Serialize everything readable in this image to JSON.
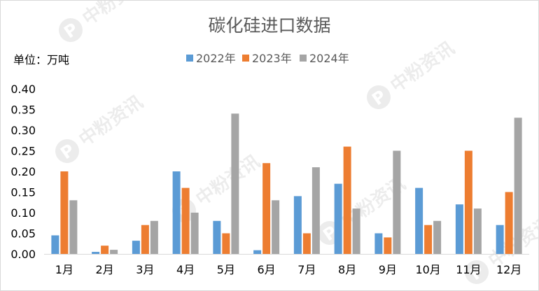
{
  "chart_data": {
    "type": "bar",
    "title": "碳化硅进口数据",
    "unit_label": "单位：万吨",
    "categories": [
      "1月",
      "2月",
      "3月",
      "4月",
      "5月",
      "6月",
      "7月",
      "8月",
      "9月",
      "10月",
      "11月",
      "12月"
    ],
    "series": [
      {
        "name": "2022年",
        "color": "#5b9bd5",
        "values": [
          0.045,
          0.005,
          0.032,
          0.2,
          0.08,
          0.009,
          0.14,
          0.17,
          0.05,
          0.16,
          0.12,
          0.07
        ]
      },
      {
        "name": "2023年",
        "color": "#ed7d31",
        "values": [
          0.2,
          0.02,
          0.07,
          0.16,
          0.05,
          0.22,
          0.05,
          0.26,
          0.04,
          0.07,
          0.25,
          0.15
        ]
      },
      {
        "name": "2024年",
        "color": "#a5a5a5",
        "values": [
          0.13,
          0.01,
          0.08,
          0.1,
          0.34,
          0.13,
          0.21,
          0.11,
          0.25,
          0.08,
          0.11,
          0.33
        ]
      }
    ],
    "ylim": [
      0,
      0.4
    ],
    "yticks": [
      "0.00",
      "0.05",
      "0.10",
      "0.15",
      "0.20",
      "0.25",
      "0.30",
      "0.35",
      "0.40"
    ],
    "grid": false,
    "legend_position": "top"
  },
  "watermark": {
    "text": "中粉资讯",
    "logo_glyph": "P"
  }
}
